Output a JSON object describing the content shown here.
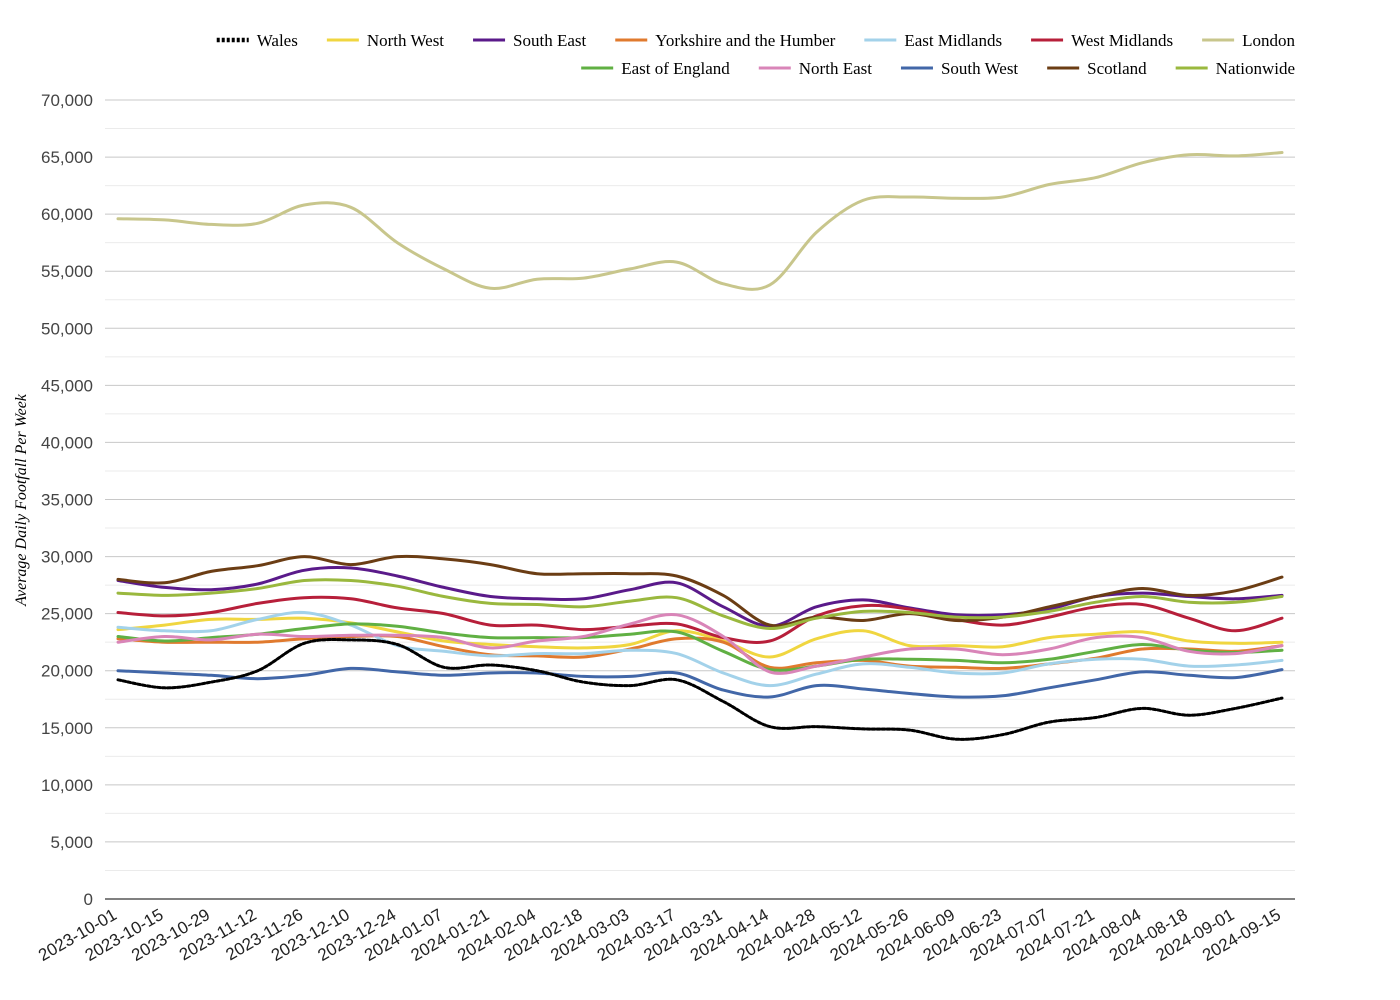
{
  "chart_data": {
    "type": "line",
    "title": "",
    "xlabel": "",
    "ylabel": "Average Daily Footfall Per Week",
    "ylim": [
      0,
      70000
    ],
    "ytick_values": [
      0,
      5000,
      10000,
      15000,
      20000,
      25000,
      30000,
      35000,
      40000,
      45000,
      50000,
      55000,
      60000,
      65000,
      70000
    ],
    "ytick_labels": [
      "0",
      "5,000",
      "10,000",
      "15,000",
      "20,000",
      "25,000",
      "30,000",
      "35,000",
      "40,000",
      "45,000",
      "50,000",
      "55,000",
      "60,000",
      "65,000",
      "70,000"
    ],
    "xtick_labels": [
      "2023-10-01",
      "2023-10-15",
      "2023-10-29",
      "2023-11-12",
      "2023-11-26",
      "2023-12-10",
      "2023-12-24",
      "2024-01-07",
      "2024-01-21",
      "2024-02-04",
      "2024-02-18",
      "2024-03-03",
      "2024-03-17",
      "2024-03-31",
      "2024-04-14",
      "2024-04-28",
      "2024-05-12",
      "2024-05-26",
      "2024-06-09",
      "2024-06-23",
      "2024-07-07",
      "2024-07-21",
      "2024-08-04",
      "2024-08-18",
      "2024-09-01",
      "2024-09-15"
    ],
    "x": [
      "2023-10-01",
      "2023-10-15",
      "2023-10-29",
      "2023-11-12",
      "2023-11-26",
      "2023-12-10",
      "2023-12-24",
      "2024-01-07",
      "2024-01-21",
      "2024-02-04",
      "2024-02-18",
      "2024-03-03",
      "2024-03-17",
      "2024-03-31",
      "2024-04-14",
      "2024-04-28",
      "2024-05-12",
      "2024-05-26",
      "2024-06-09",
      "2024-06-23",
      "2024-07-07",
      "2024-07-21",
      "2024-08-04",
      "2024-08-18",
      "2024-09-01",
      "2024-09-15"
    ],
    "grid": true,
    "legend_position": "top-right",
    "series": [
      {
        "name": "Wales",
        "color": "#000000",
        "dashed": true,
        "values": [
          19200,
          18500,
          19000,
          20000,
          22400,
          22700,
          22300,
          20300,
          20500,
          20000,
          19000,
          18700,
          19200,
          17300,
          15100,
          15100,
          14900,
          14800,
          14000,
          14400,
          15500,
          15900,
          16700,
          16100,
          16700,
          17600
        ]
      },
      {
        "name": "North West",
        "color": "#f0d640",
        "dashed": false,
        "values": [
          23600,
          24000,
          24500,
          24500,
          24600,
          24200,
          23400,
          22600,
          22300,
          22100,
          22000,
          22300,
          23500,
          22600,
          21200,
          22800,
          23500,
          22200,
          22200,
          22100,
          22900,
          23200,
          23400,
          22600,
          22400,
          22500
        ]
      },
      {
        "name": "South East",
        "color": "#5a1a8a",
        "dashed": false,
        "values": [
          27900,
          27300,
          27100,
          27600,
          28800,
          29000,
          28300,
          27300,
          26500,
          26300,
          26300,
          27100,
          27700,
          25600,
          23900,
          25600,
          26200,
          25500,
          24900,
          24900,
          25400,
          26500,
          26800,
          26500,
          26300,
          26600
        ]
      },
      {
        "name": "Yorkshire and the Humber",
        "color": "#e07a2e",
        "dashed": false,
        "values": [
          22800,
          22500,
          22500,
          22500,
          22800,
          23000,
          23000,
          22100,
          21400,
          21300,
          21200,
          21900,
          22800,
          22500,
          20300,
          20700,
          20900,
          20400,
          20300,
          20200,
          20600,
          21100,
          21900,
          21900,
          21700,
          22200
        ]
      },
      {
        "name": "East Midlands",
        "color": "#a3d2ea",
        "dashed": false,
        "values": [
          23800,
          23500,
          23500,
          24500,
          25100,
          24000,
          22200,
          21700,
          21300,
          21500,
          21500,
          21800,
          21500,
          19800,
          18700,
          19700,
          20600,
          20300,
          19800,
          19800,
          20600,
          21000,
          21000,
          20400,
          20500,
          20900
        ]
      },
      {
        "name": "West Midlands",
        "color": "#b71f3a",
        "dashed": false,
        "values": [
          25100,
          24800,
          25100,
          25900,
          26400,
          26300,
          25500,
          25000,
          24000,
          24000,
          23600,
          23900,
          24100,
          22900,
          22600,
          24800,
          25700,
          25400,
          24500,
          24000,
          24700,
          25600,
          25800,
          24600,
          23500,
          24600
        ]
      },
      {
        "name": "London",
        "color": "#c8c68c",
        "dashed": false,
        "values": [
          59600,
          59500,
          59100,
          59200,
          60800,
          60600,
          57500,
          55200,
          53500,
          54300,
          54400,
          55200,
          55800,
          53900,
          53800,
          58400,
          61200,
          61500,
          61400,
          61500,
          62600,
          63200,
          64500,
          65200,
          65100,
          65400
        ]
      },
      {
        "name": "East of England",
        "color": "#60b043",
        "dashed": false,
        "values": [
          23000,
          22600,
          22900,
          23200,
          23700,
          24100,
          23900,
          23300,
          22900,
          22900,
          22900,
          23200,
          23400,
          21700,
          20100,
          20400,
          21000,
          21000,
          20900,
          20700,
          21000,
          21700,
          22300,
          21800,
          21600,
          21800
        ]
      },
      {
        "name": "North East",
        "color": "#d985b8",
        "dashed": false,
        "values": [
          22500,
          23000,
          22700,
          23200,
          23000,
          23100,
          23100,
          22900,
          22000,
          22600,
          23000,
          24100,
          24900,
          23000,
          19900,
          20400,
          21200,
          21900,
          21900,
          21400,
          21900,
          22900,
          22900,
          21700,
          21500,
          22200
        ]
      },
      {
        "name": "South West",
        "color": "#4267a8",
        "dashed": false,
        "values": [
          20000,
          19800,
          19600,
          19300,
          19600,
          20200,
          19900,
          19600,
          19800,
          19800,
          19500,
          19500,
          19800,
          18300,
          17700,
          18700,
          18400,
          18000,
          17700,
          17800,
          18500,
          19200,
          19900,
          19600,
          19400,
          20100
        ]
      },
      {
        "name": "Scotland",
        "color": "#6b3d14",
        "dashed": false,
        "values": [
          28000,
          27700,
          28700,
          29200,
          30000,
          29300,
          30000,
          29800,
          29300,
          28500,
          28500,
          28500,
          28300,
          26600,
          24000,
          24700,
          24400,
          25000,
          24400,
          24700,
          25600,
          26500,
          27200,
          26600,
          27000,
          28200
        ]
      },
      {
        "name": "Nationwide",
        "color": "#9ab83e",
        "dashed": false,
        "values": [
          26800,
          26600,
          26800,
          27200,
          27900,
          27900,
          27400,
          26500,
          25900,
          25800,
          25600,
          26100,
          26400,
          24800,
          23700,
          24600,
          25200,
          25100,
          24700,
          24700,
          25200,
          26000,
          26500,
          26000,
          26000,
          26500
        ]
      }
    ]
  }
}
